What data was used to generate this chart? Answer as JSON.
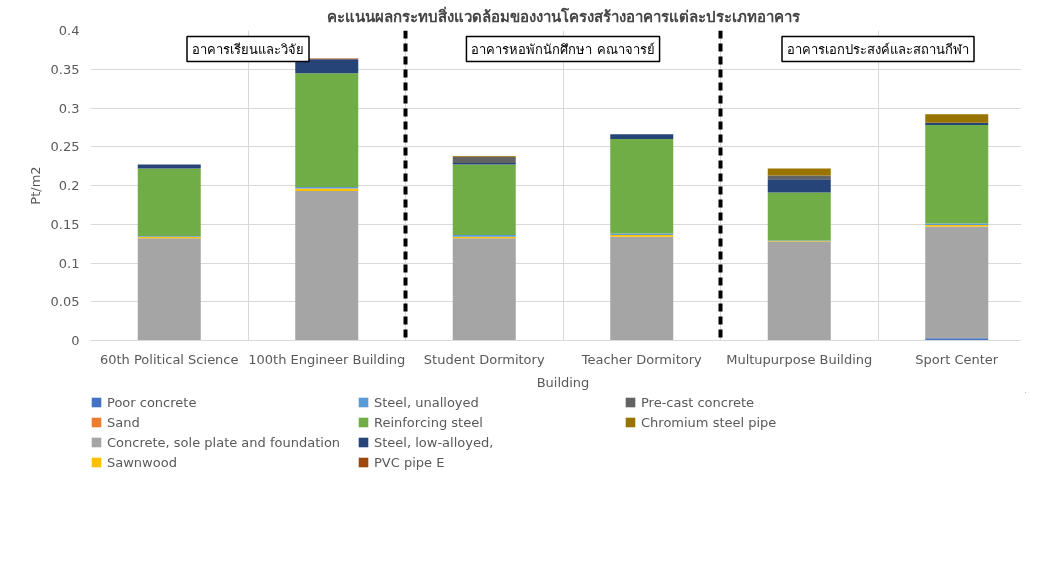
{
  "chart_data": {
    "type": "bar",
    "stacked": true,
    "title": "คะแนนผลกระทบสิ่งแวดล้อมของงานโครงสร้างอาคารแต่ละประเภทอาคาร",
    "xlabel": "Building",
    "ylabel": "Pt/m2",
    "categories": [
      "60th Political Science",
      "100th Engineer Building",
      "Student Dormitory",
      "Teacher Dormitory",
      "Multupurpose Building",
      "Sport Center"
    ],
    "series": [
      {
        "name": "Poor concrete",
        "color": "#4472c4",
        "values": [
          0,
          0,
          0,
          0,
          0,
          0.003
        ]
      },
      {
        "name": "Sand",
        "color": "#ed7d31",
        "values": [
          0,
          0,
          0,
          0,
          0,
          0
        ]
      },
      {
        "name": "Concrete, sole plate and foundation",
        "color": "#a5a5a5",
        "values": [
          0.132,
          0.193,
          0.132,
          0.134,
          0.127,
          0.144
        ]
      },
      {
        "name": "Sawnwood",
        "color": "#ffc000",
        "values": [
          0.002,
          0.003,
          0.002,
          0.002,
          0.001,
          0.002
        ]
      },
      {
        "name": "Steel, unalloyed",
        "color": "#5b9bd5",
        "values": [
          0.001,
          0.002,
          0.002,
          0.002,
          0.001,
          0.002
        ]
      },
      {
        "name": "Reinforcing steel",
        "color": "#70ad47",
        "values": [
          0.087,
          0.147,
          0.091,
          0.122,
          0.062,
          0.127
        ]
      },
      {
        "name": "Steel, low-alloyed,",
        "color": "#264478",
        "values": [
          0.005,
          0.018,
          0.002,
          0.006,
          0.017,
          0.003
        ]
      },
      {
        "name": "PVC pipe E",
        "color": "#9e480e",
        "values": [
          0,
          0.001,
          0,
          0,
          0,
          0
        ]
      },
      {
        "name": "Pre-cast concrete",
        "color": "#636363",
        "values": [
          0,
          0,
          0.008,
          0,
          0.005,
          0
        ]
      },
      {
        "name": "Chromium steel pipe",
        "color": "#997300",
        "values": [
          0,
          0,
          0.001,
          0,
          0.009,
          0.011
        ]
      }
    ],
    "ylim": [
      0,
      0.4
    ],
    "yticks": [
      0,
      0.05,
      0.1,
      0.15,
      0.2,
      0.25,
      0.3,
      0.35,
      0.4
    ],
    "grid": true,
    "legend": "bottom",
    "annotations": [
      "อาคารเรียนและวิจัย",
      "อาคารหอพักนักศึกษา คณาจารย์",
      "อาคารเอกประสงค์และสถานกีฬา"
    ]
  }
}
